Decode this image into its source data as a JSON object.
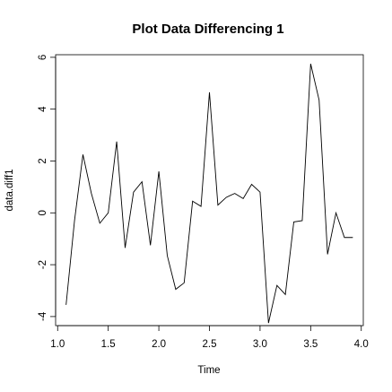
{
  "chart_data": {
    "type": "line",
    "title": "Plot Data Differencing 1",
    "xlabel": "Time",
    "ylabel": "data.diff1",
    "xlim": [
      0.98,
      4.02
    ],
    "ylim": [
      -4.35,
      6.1
    ],
    "xticks": [
      "1.0",
      "1.5",
      "2.0",
      "2.5",
      "3.0",
      "3.5",
      "4.0"
    ],
    "yticks": [
      "-4",
      "-2",
      "0",
      "2",
      "4",
      "6"
    ],
    "grid": false,
    "series": [
      {
        "x": [
          1.0833,
          1.1667,
          1.25,
          1.3333,
          1.4167,
          1.5,
          1.5833,
          1.6667,
          1.75,
          1.8333,
          1.9167,
          2.0,
          2.0833,
          2.1667,
          2.25,
          2.3333,
          2.4167,
          2.5,
          2.5833,
          2.6667,
          2.75,
          2.8333,
          2.9167,
          3.0,
          3.0833,
          3.1667,
          3.25,
          3.3333,
          3.4167,
          3.5,
          3.5833,
          3.6667,
          3.75,
          3.8333,
          3.9167
        ],
        "values": [
          -3.55,
          -0.3,
          2.25,
          0.75,
          -0.4,
          0.0,
          2.75,
          -1.35,
          0.8,
          1.2,
          -1.25,
          1.6,
          -1.65,
          -2.95,
          -2.7,
          0.45,
          0.25,
          4.65,
          0.3,
          0.6,
          0.75,
          0.55,
          1.1,
          0.8,
          -4.25,
          -2.8,
          -3.15,
          -0.35,
          -0.3,
          5.75,
          4.35,
          -1.6,
          0.0,
          -0.95,
          -0.95
        ]
      }
    ]
  }
}
